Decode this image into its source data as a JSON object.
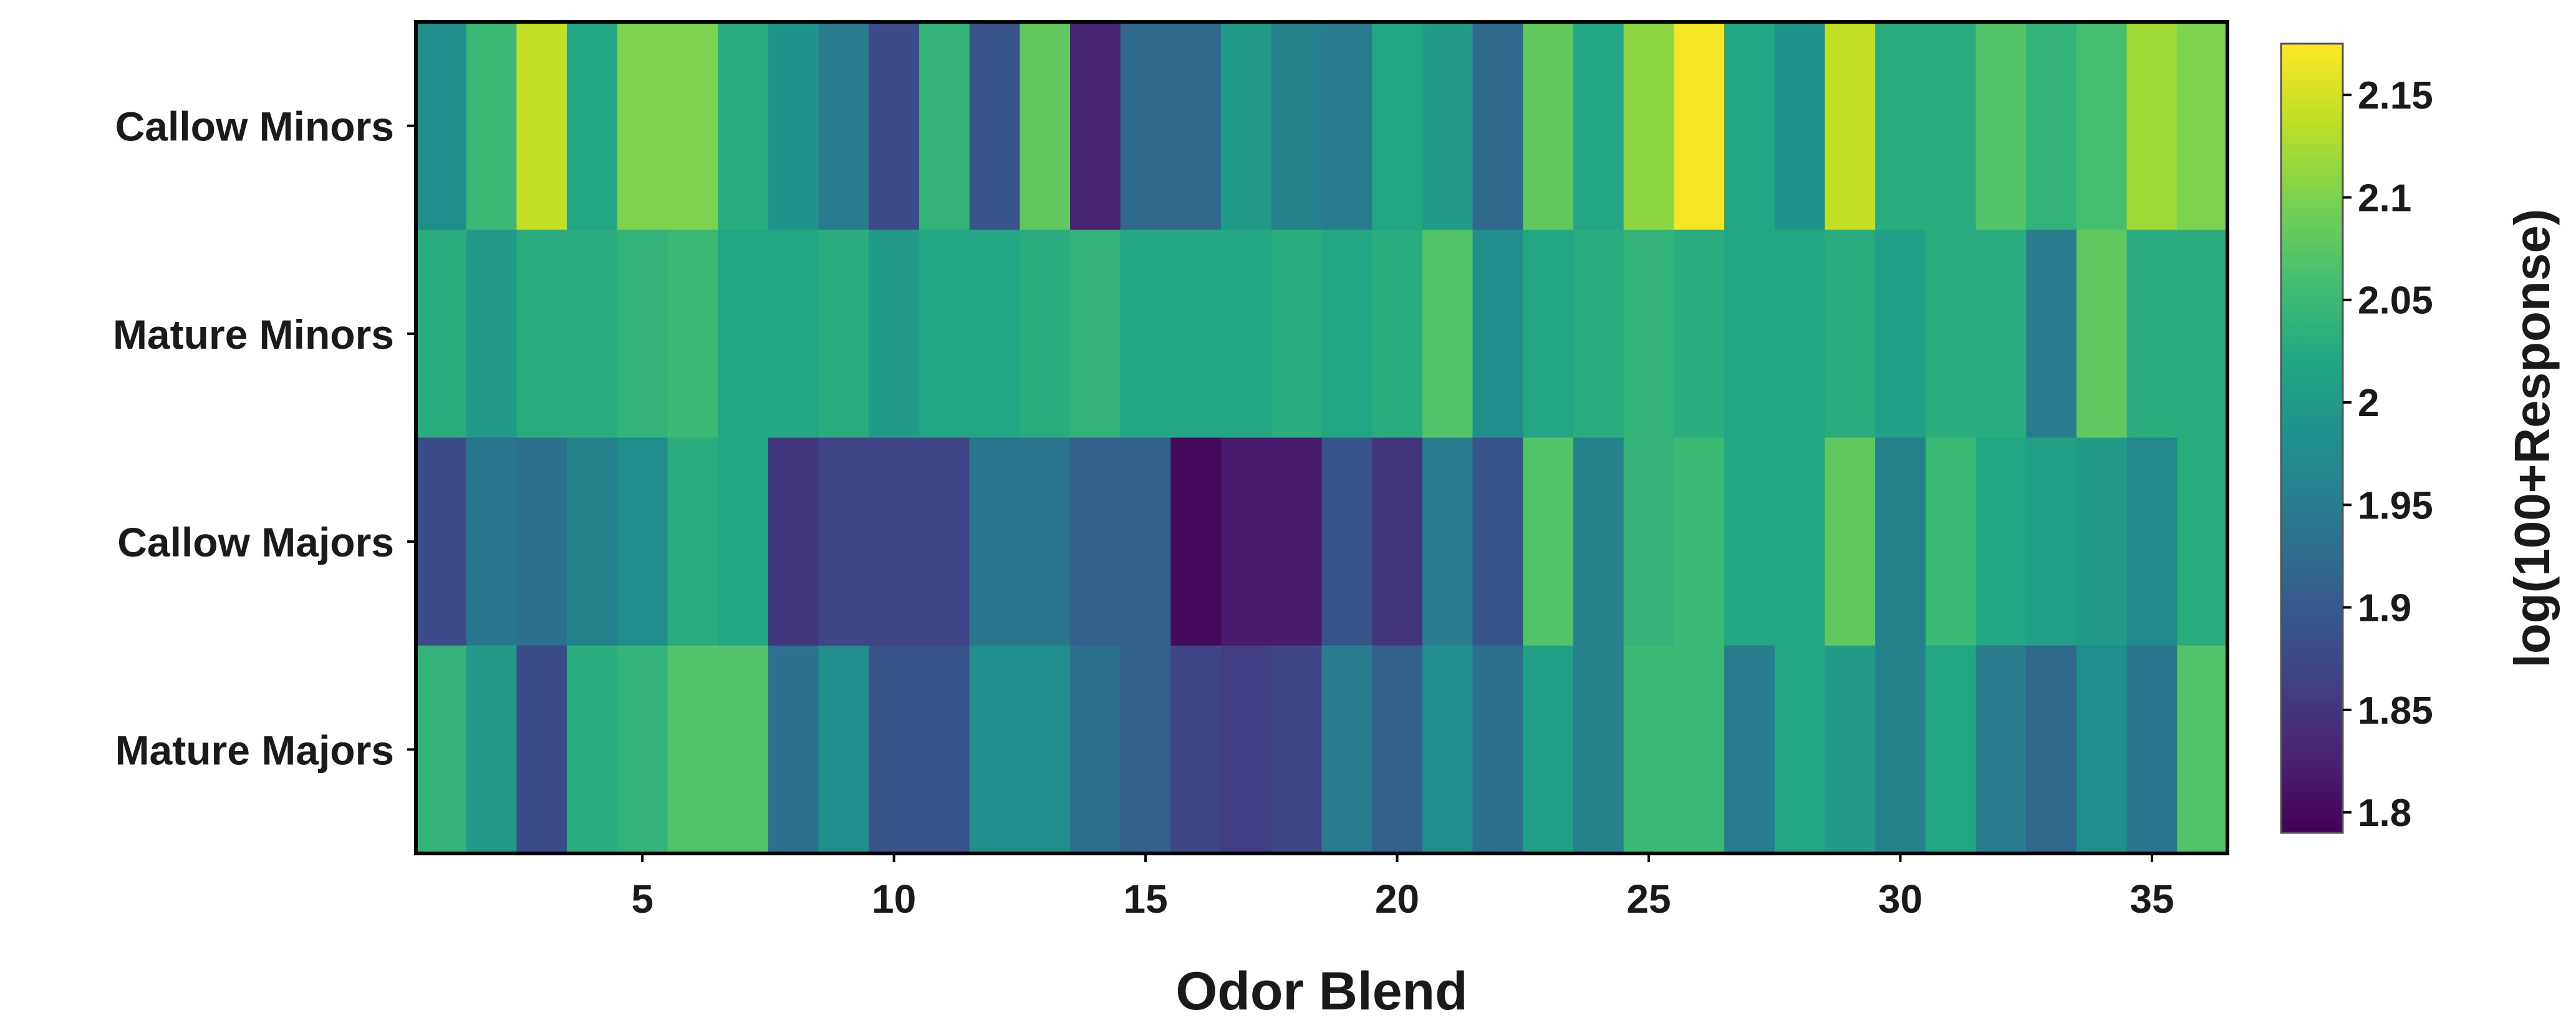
{
  "chart_data": {
    "type": "heatmap",
    "title": "",
    "xlabel": "Odor Blend",
    "ylabel": "",
    "colorbar_label": "log(100+Response)",
    "colormap": "viridis",
    "colorbar_range": [
      1.79,
      2.175
    ],
    "colorbar_ticks": [
      1.8,
      1.85,
      1.9,
      1.95,
      2.0,
      2.05,
      2.1,
      2.15
    ],
    "colorbar_tick_labels": [
      "1.8",
      "1.85",
      "1.9",
      "1.95",
      "2",
      "2.05",
      "2.1",
      "2.15"
    ],
    "x": [
      1,
      2,
      3,
      4,
      5,
      6,
      7,
      8,
      9,
      10,
      11,
      12,
      13,
      14,
      15,
      16,
      17,
      18,
      19,
      20,
      21,
      22,
      23,
      24,
      25,
      26,
      27,
      28,
      29,
      30,
      31,
      32,
      33,
      34,
      35,
      36
    ],
    "x_ticks": [
      5,
      10,
      15,
      20,
      25,
      30,
      35
    ],
    "x_tick_labels": [
      "5",
      "10",
      "15",
      "20",
      "25",
      "30",
      "35"
    ],
    "rows": [
      "Callow Minors",
      "Mature Minors",
      "Callow Majors",
      "Mature Majors"
    ],
    "values": [
      [
        1.98,
        2.05,
        2.14,
        2.02,
        2.1,
        2.1,
        2.03,
        1.99,
        1.95,
        1.88,
        2.04,
        1.89,
        2.08,
        1.83,
        1.92,
        1.92,
        2.0,
        1.96,
        1.95,
        2.02,
        2.0,
        1.92,
        2.08,
        2.02,
        2.11,
        2.17,
        2.02,
        1.99,
        2.14,
        2.03,
        2.03,
        2.07,
        2.04,
        2.06,
        2.12,
        2.1
      ],
      [
        2.03,
        2.0,
        2.03,
        2.03,
        2.04,
        2.05,
        2.02,
        2.02,
        2.03,
        2.0,
        2.02,
        2.02,
        2.03,
        2.04,
        2.02,
        2.02,
        2.02,
        2.03,
        2.02,
        2.03,
        2.07,
        1.98,
        2.02,
        2.03,
        2.04,
        2.03,
        2.02,
        2.02,
        2.03,
        2.01,
        2.03,
        2.03,
        1.95,
        2.08,
        2.03,
        2.03
      ],
      [
        1.88,
        1.94,
        1.93,
        1.96,
        1.98,
        2.03,
        2.02,
        1.85,
        1.87,
        1.87,
        1.87,
        1.94,
        1.94,
        1.91,
        1.91,
        1.8,
        1.82,
        1.82,
        1.89,
        1.85,
        1.95,
        1.89,
        2.07,
        1.96,
        2.04,
        2.05,
        2.02,
        2.02,
        2.08,
        1.96,
        2.05,
        2.02,
        2.01,
        2.0,
        1.97,
        2.03
      ],
      [
        2.04,
        2.0,
        1.88,
        2.03,
        2.04,
        2.07,
        2.07,
        1.93,
        1.98,
        1.89,
        1.89,
        1.98,
        1.98,
        1.93,
        1.91,
        1.87,
        1.86,
        1.87,
        1.95,
        1.91,
        1.98,
        1.93,
        2.01,
        1.96,
        2.05,
        2.05,
        1.95,
        2.02,
        2.0,
        1.96,
        2.02,
        1.95,
        1.92,
        1.98,
        1.94,
        2.07
      ]
    ]
  }
}
